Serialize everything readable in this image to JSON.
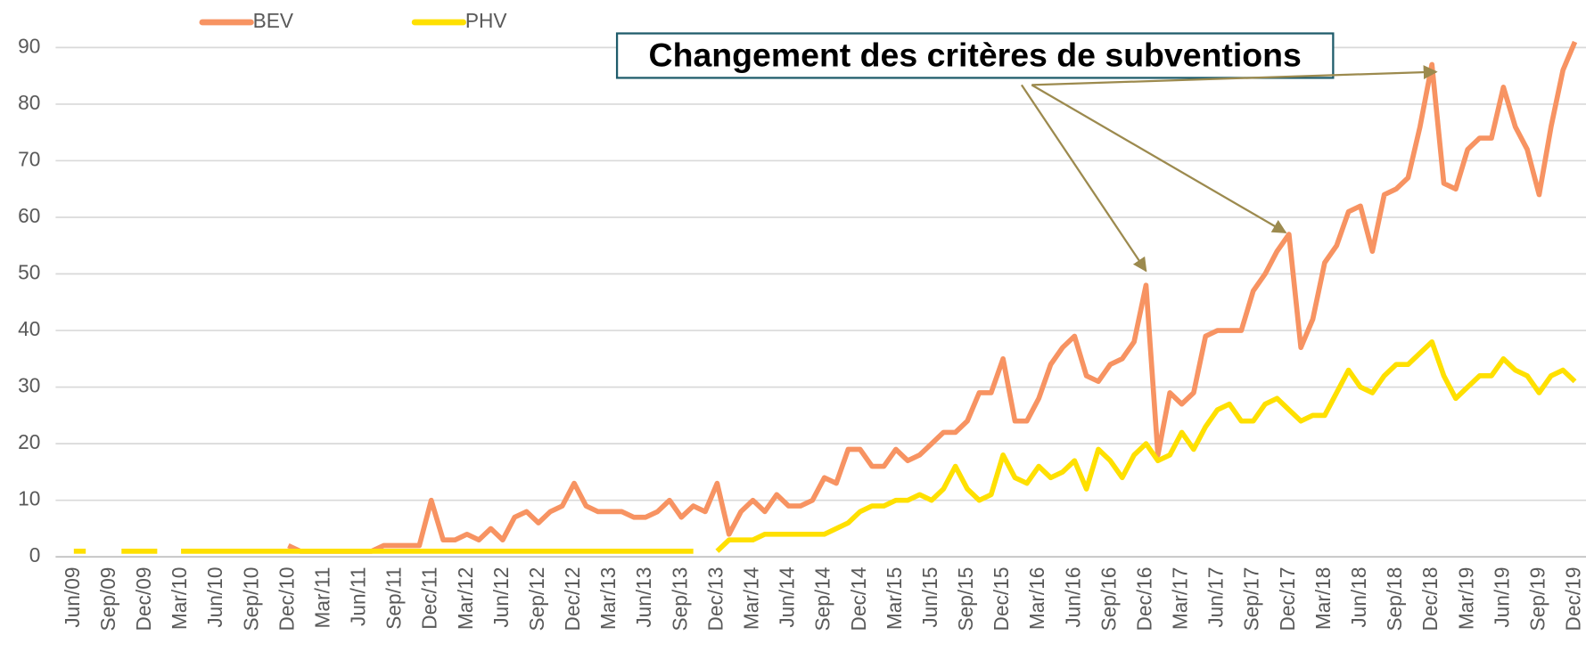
{
  "chart_data": {
    "type": "line",
    "annotations": [
      "Changement des critères de subventions"
    ],
    "categories": [
      "Jun/09",
      null,
      null,
      "Sep/09",
      null,
      null,
      "Dec/09",
      null,
      null,
      "Mar/10",
      null,
      null,
      "Jun/10",
      null,
      null,
      "Sep/10",
      null,
      null,
      "Dec/10",
      null,
      null,
      "Mar/11",
      null,
      null,
      "Jun/11",
      null,
      null,
      "Sep/11",
      null,
      null,
      "Dec/11",
      null,
      null,
      "Mar/12",
      null,
      null,
      "Jun/12",
      null,
      null,
      "Sep/12",
      null,
      null,
      "Dec/12",
      null,
      null,
      "Mar/13",
      null,
      null,
      "Jun/13",
      null,
      null,
      "Sep/13",
      null,
      null,
      "Dec/13",
      null,
      null,
      "Mar/14",
      null,
      null,
      "Jun/14",
      null,
      null,
      "Sep/14",
      null,
      null,
      "Dec/14",
      null,
      null,
      "Mar/15",
      null,
      null,
      "Jun/15",
      null,
      null,
      "Sep/15",
      null,
      null,
      "Dec/15",
      null,
      null,
      "Mar/16",
      null,
      null,
      "Jun/16",
      null,
      null,
      "Sep/16",
      null,
      null,
      "Dec/16",
      null,
      null,
      "Mar/17",
      null,
      null,
      "Jun/17",
      null,
      null,
      "Sep/17",
      null,
      null,
      "Dec/17",
      null,
      null,
      "Mar/18",
      null,
      null,
      "Jun/18",
      null,
      null,
      "Sep/18",
      null,
      null,
      "Dec/18",
      null,
      null,
      "Mar/19",
      null,
      null,
      "Jun/19",
      null,
      null,
      "Sep/19",
      null,
      null,
      "Dec/19"
    ],
    "series": [
      {
        "name": "BEV",
        "color": "#f79362",
        "values": [
          null,
          null,
          null,
          null,
          null,
          null,
          null,
          null,
          null,
          null,
          null,
          null,
          null,
          null,
          null,
          null,
          null,
          null,
          2,
          1,
          1,
          1,
          1,
          1,
          1,
          1,
          2,
          2,
          2,
          2,
          10,
          3,
          3,
          4,
          3,
          5,
          3,
          7,
          8,
          6,
          8,
          9,
          13,
          9,
          8,
          8,
          8,
          7,
          7,
          8,
          10,
          7,
          9,
          8,
          13,
          4,
          8,
          10,
          8,
          11,
          9,
          9,
          10,
          14,
          13,
          19,
          19,
          16,
          16,
          19,
          17,
          18,
          20,
          22,
          22,
          24,
          29,
          29,
          35,
          24,
          24,
          28,
          34,
          37,
          39,
          32,
          31,
          34,
          35,
          38,
          48,
          18,
          29,
          27,
          29,
          39,
          40,
          40,
          40,
          47,
          50,
          54,
          57,
          37,
          42,
          52,
          55,
          61,
          62,
          54,
          64,
          65,
          67,
          76,
          87,
          66,
          65,
          72,
          74,
          74,
          83,
          76,
          72,
          64,
          76,
          86,
          91
        ]
      },
      {
        "name": "PHV",
        "color": "#ffe000",
        "values": [
          1,
          1,
          null,
          null,
          1,
          1,
          1,
          1,
          null,
          1,
          1,
          1,
          1,
          1,
          1,
          1,
          1,
          1,
          1,
          1,
          1,
          1,
          1,
          1,
          1,
          1,
          1,
          1,
          1,
          1,
          1,
          1,
          1,
          1,
          1,
          1,
          1,
          1,
          1,
          1,
          1,
          1,
          1,
          1,
          1,
          1,
          1,
          1,
          1,
          1,
          1,
          1,
          1,
          null,
          1,
          3,
          3,
          3,
          4,
          4,
          4,
          4,
          4,
          4,
          5,
          6,
          8,
          9,
          9,
          10,
          10,
          11,
          10,
          12,
          16,
          12,
          10,
          11,
          18,
          14,
          13,
          16,
          14,
          15,
          17,
          12,
          19,
          17,
          14,
          18,
          20,
          17,
          18,
          22,
          19,
          23,
          26,
          27,
          24,
          24,
          27,
          28,
          26,
          24,
          25,
          25,
          29,
          33,
          30,
          29,
          32,
          34,
          34,
          36,
          38,
          32,
          28,
          30,
          32,
          32,
          35,
          33,
          32,
          29,
          32,
          33,
          31
        ]
      }
    ],
    "ylim": [
      0,
      90
    ],
    "yticks": [
      0,
      10,
      20,
      30,
      40,
      50,
      60,
      70,
      80,
      90
    ],
    "grid": true,
    "legend": "top-left"
  }
}
